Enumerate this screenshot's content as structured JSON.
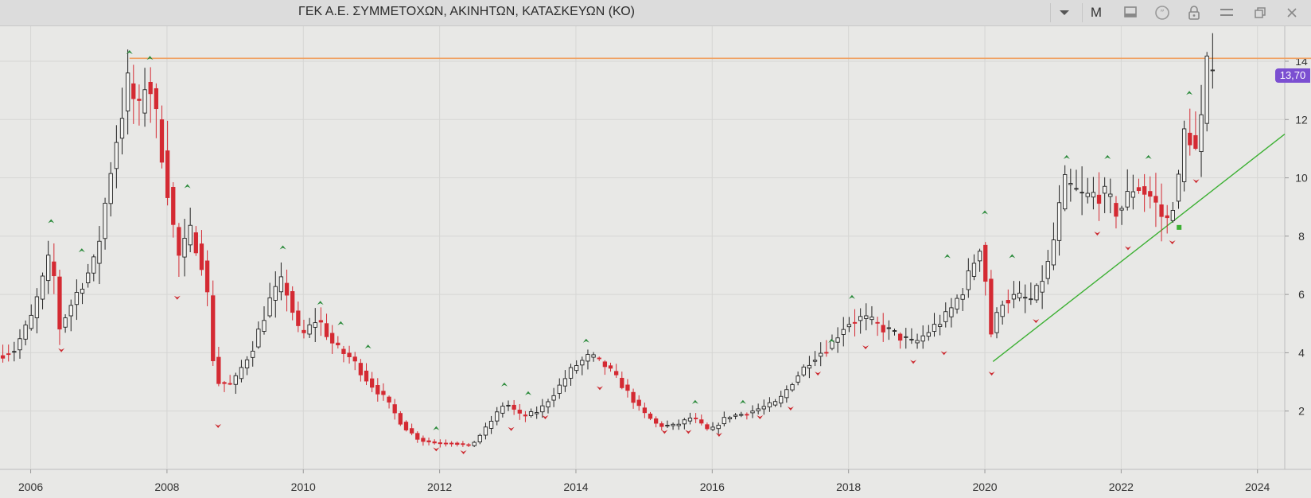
{
  "header": {
    "title": "ΓΕΚ  Α.Ε. ΣΥΜΜΕΤΟΧΩΝ, ΑΚΙΝΗΤΩΝ, ΚΑΤΑΣΚΕΥΩΝ (ΚΟ)",
    "period_label": "M",
    "icons": [
      "chevron-down-icon",
      "monitor-icon",
      "quote-icon",
      "lock-icon",
      "menu-icon",
      "restore-icon",
      "close-icon"
    ]
  },
  "last_price_label": "13,70",
  "colors": {
    "up_candle": "#222222",
    "down_candle": "#d42a33",
    "resistance_line": "#f0a060",
    "trend_line": "#3cb033",
    "price_badge": "#7b4fd1",
    "arrow_up": "#2a8a3a",
    "arrow_down": "#cc2a30"
  },
  "chart_data": {
    "type": "candlestick",
    "x_range": [
      2005.55,
      2024.4
    ],
    "ylim": [
      0,
      15.2
    ],
    "x_ticks": [
      "2006",
      "2008",
      "2010",
      "2012",
      "2014",
      "2016",
      "2018",
      "2020",
      "2022",
      "2024"
    ],
    "y_ticks": [
      "2",
      "4",
      "6",
      "8",
      "10",
      "12",
      "14"
    ],
    "grid": true,
    "resistance_level": 14.1,
    "trend_line": {
      "start": [
        2020.12,
        3.7
      ],
      "end": [
        2024.4,
        11.5
      ]
    },
    "anchors": [
      [
        2005.55,
        3.9
      ],
      [
        2005.8,
        4.1
      ],
      [
        2006.05,
        5.2
      ],
      [
        2006.35,
        7.5
      ],
      [
        2006.45,
        4.8
      ],
      [
        2006.75,
        6.2
      ],
      [
        2007.0,
        7.2
      ],
      [
        2007.25,
        10.8
      ],
      [
        2007.5,
        13.6
      ],
      [
        2007.6,
        11.8
      ],
      [
        2007.75,
        13.7
      ],
      [
        2008.0,
        10.5
      ],
      [
        2008.2,
        7.2
      ],
      [
        2008.4,
        8.2
      ],
      [
        2008.6,
        6.8
      ],
      [
        2008.75,
        3.0
      ],
      [
        2009.0,
        2.9
      ],
      [
        2009.3,
        4.2
      ],
      [
        2009.55,
        5.8
      ],
      [
        2009.75,
        6.5
      ],
      [
        2010.0,
        4.5
      ],
      [
        2010.25,
        5.2
      ],
      [
        2010.5,
        4.2
      ],
      [
        2010.75,
        3.8
      ],
      [
        2011.0,
        3.0
      ],
      [
        2011.25,
        2.4
      ],
      [
        2011.5,
        1.5
      ],
      [
        2011.75,
        1.0
      ],
      [
        2012.0,
        0.9
      ],
      [
        2012.25,
        0.9
      ],
      [
        2012.5,
        0.8
      ],
      [
        2012.75,
        1.5
      ],
      [
        2013.0,
        2.3
      ],
      [
        2013.25,
        1.8
      ],
      [
        2013.5,
        2.0
      ],
      [
        2013.75,
        2.7
      ],
      [
        2014.0,
        3.5
      ],
      [
        2014.25,
        3.9
      ],
      [
        2014.5,
        3.5
      ],
      [
        2014.75,
        2.8
      ],
      [
        2015.0,
        2.0
      ],
      [
        2015.25,
        1.5
      ],
      [
        2015.5,
        1.5
      ],
      [
        2015.75,
        1.8
      ],
      [
        2016.0,
        1.3
      ],
      [
        2016.25,
        1.8
      ],
      [
        2016.5,
        1.9
      ],
      [
        2016.75,
        2.1
      ],
      [
        2017.0,
        2.3
      ],
      [
        2017.25,
        3.1
      ],
      [
        2017.5,
        3.8
      ],
      [
        2017.75,
        4.2
      ],
      [
        2018.0,
        5.0
      ],
      [
        2018.25,
        5.2
      ],
      [
        2018.5,
        4.9
      ],
      [
        2018.75,
        4.6
      ],
      [
        2019.0,
        4.3
      ],
      [
        2019.25,
        4.8
      ],
      [
        2019.5,
        5.3
      ],
      [
        2019.75,
        6.3
      ],
      [
        2020.0,
        7.9
      ],
      [
        2020.12,
        4.6
      ],
      [
        2020.3,
        5.8
      ],
      [
        2020.5,
        5.9
      ],
      [
        2020.75,
        5.8
      ],
      [
        2021.0,
        7.2
      ],
      [
        2021.2,
        9.8
      ],
      [
        2021.5,
        9.3
      ],
      [
        2021.75,
        9.5
      ],
      [
        2022.0,
        8.8
      ],
      [
        2022.25,
        9.8
      ],
      [
        2022.5,
        9.3
      ],
      [
        2022.7,
        8.4
      ],
      [
        2022.9,
        10.0
      ],
      [
        2023.0,
        12.3
      ],
      [
        2023.1,
        10.6
      ],
      [
        2023.2,
        11.5
      ],
      [
        2023.3,
        13.7
      ]
    ],
    "swing_highs": [
      [
        2006.3,
        8.5
      ],
      [
        2006.75,
        7.5
      ],
      [
        2007.45,
        14.3
      ],
      [
        2007.75,
        14.1
      ],
      [
        2008.3,
        9.7
      ],
      [
        2009.7,
        7.6
      ],
      [
        2010.25,
        5.7
      ],
      [
        2010.55,
        5.0
      ],
      [
        2010.95,
        4.2
      ],
      [
        2011.95,
        1.4
      ],
      [
        2012.95,
        2.9
      ],
      [
        2013.3,
        2.6
      ],
      [
        2014.15,
        4.4
      ],
      [
        2015.75,
        2.3
      ],
      [
        2016.45,
        2.3
      ],
      [
        2017.75,
        4.4
      ],
      [
        2018.05,
        5.9
      ],
      [
        2019.45,
        7.3
      ],
      [
        2020.0,
        8.8
      ],
      [
        2020.4,
        7.3
      ],
      [
        2021.2,
        10.7
      ],
      [
        2021.8,
        10.7
      ],
      [
        2022.4,
        10.7
      ],
      [
        2023.0,
        12.9
      ]
    ],
    "swing_lows": [
      [
        2006.45,
        4.1
      ],
      [
        2008.15,
        5.9
      ],
      [
        2008.75,
        1.5
      ],
      [
        2011.95,
        0.7
      ],
      [
        2012.35,
        0.6
      ],
      [
        2013.05,
        1.4
      ],
      [
        2013.55,
        1.8
      ],
      [
        2014.35,
        2.8
      ],
      [
        2015.3,
        1.3
      ],
      [
        2015.65,
        1.3
      ],
      [
        2016.1,
        1.2
      ],
      [
        2016.7,
        1.8
      ],
      [
        2017.15,
        2.1
      ],
      [
        2017.55,
        3.3
      ],
      [
        2018.25,
        4.2
      ],
      [
        2018.95,
        3.7
      ],
      [
        2019.4,
        4.0
      ],
      [
        2020.1,
        3.3
      ],
      [
        2020.75,
        5.1
      ],
      [
        2021.65,
        8.1
      ],
      [
        2022.1,
        7.6
      ],
      [
        2022.75,
        7.8
      ],
      [
        2023.1,
        9.9
      ]
    ]
  }
}
